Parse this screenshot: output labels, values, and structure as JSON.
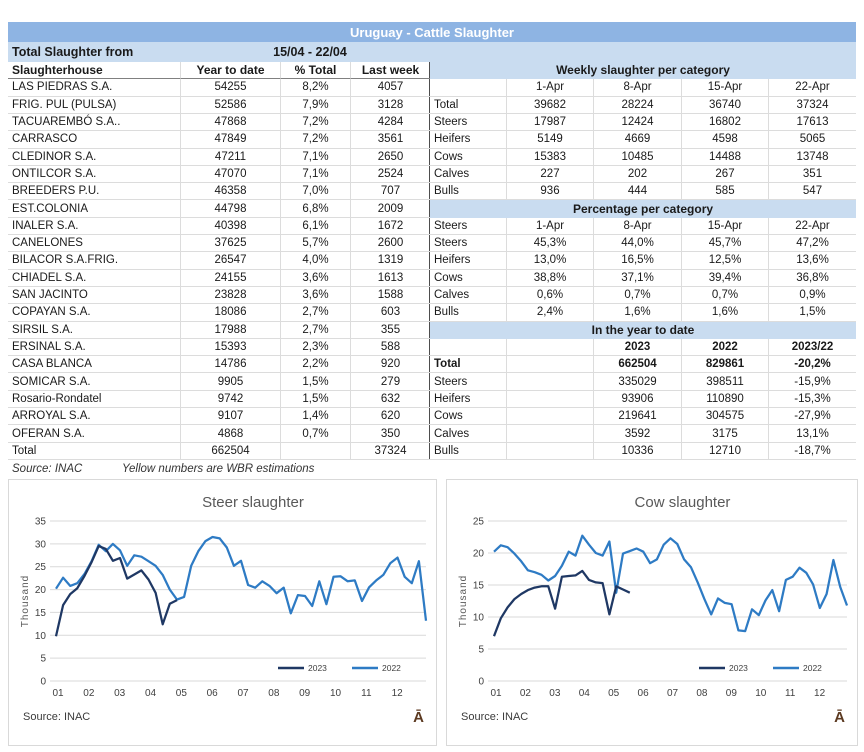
{
  "title_bar": "Uruguay - Cattle Slaughter",
  "period": {
    "label": "Total Slaughter from",
    "value": "15/04 - 22/04"
  },
  "left_table": {
    "headers": [
      "Slaughterhouse",
      "Year to date",
      "% Total",
      "Last week"
    ],
    "rows": [
      [
        "LAS PIEDRAS S.A.",
        "54255",
        "8,2%",
        "4057"
      ],
      [
        "FRIG. PUL (PULSA)",
        "52586",
        "7,9%",
        "3128"
      ],
      [
        "TACUAREMBÓ S.A..",
        "47868",
        "7,2%",
        "4284"
      ],
      [
        "CARRASCO",
        "47849",
        "7,2%",
        "3561"
      ],
      [
        "CLEDINOR S.A.",
        "47211",
        "7,1%",
        "2650"
      ],
      [
        "ONTILCOR S.A.",
        "47070",
        "7,1%",
        "2524"
      ],
      [
        "BREEDERS P.U.",
        "46358",
        "7,0%",
        "707"
      ],
      [
        "EST.COLONIA",
        "44798",
        "6,8%",
        "2009"
      ],
      [
        "INALER S.A.",
        "40398",
        "6,1%",
        "1672"
      ],
      [
        "CANELONES",
        "37625",
        "5,7%",
        "2600"
      ],
      [
        "BILACOR S.A.FRIG.",
        "26547",
        "4,0%",
        "1319"
      ],
      [
        "CHIADEL S.A.",
        "24155",
        "3,6%",
        "1613"
      ],
      [
        "SAN JACINTO",
        "23828",
        "3,6%",
        "1588"
      ],
      [
        "COPAYAN S.A.",
        "18086",
        "2,7%",
        "603"
      ],
      [
        "SIRSIL S.A.",
        "17988",
        "2,7%",
        "355"
      ],
      [
        "ERSINAL S.A.",
        "15393",
        "2,3%",
        "588"
      ],
      [
        "CASA BLANCA",
        "14786",
        "2,2%",
        "920"
      ],
      [
        "SOMICAR S.A.",
        "9905",
        "1,5%",
        "279"
      ],
      [
        "Rosario-Rondatel",
        "9742",
        "1,5%",
        "632"
      ],
      [
        "ARROYAL S.A.",
        "9107",
        "1,4%",
        "620"
      ],
      [
        "OFERAN S.A.",
        "4868",
        "0,7%",
        "350"
      ],
      [
        "Total",
        "662504",
        "",
        "37324"
      ]
    ],
    "footnote_source": "Source: INAC",
    "footnote_note": "Yellow numbers are WBR estimations"
  },
  "right_panel": {
    "rows": [
      {
        "kind": "band",
        "label": "Weekly slaughter per category"
      },
      {
        "kind": "cols",
        "label": "",
        "values": [
          "1-Apr",
          "8-Apr",
          "15-Apr",
          "22-Apr"
        ],
        "bold": false
      },
      {
        "kind": "data",
        "label": "Total",
        "values": [
          "39682",
          "28224",
          "36740",
          "37324"
        ],
        "bold": false
      },
      {
        "kind": "data",
        "label": "Steers",
        "values": [
          "17987",
          "12424",
          "16802",
          "17613"
        ],
        "bold": false
      },
      {
        "kind": "data",
        "label": "Heifers",
        "values": [
          "5149",
          "4669",
          "4598",
          "5065"
        ],
        "bold": false
      },
      {
        "kind": "data",
        "label": "Cows",
        "values": [
          "15383",
          "10485",
          "14488",
          "13748"
        ],
        "bold": false
      },
      {
        "kind": "data",
        "label": "Calves",
        "values": [
          "227",
          "202",
          "267",
          "351"
        ],
        "bold": false
      },
      {
        "kind": "data",
        "label": "Bulls",
        "values": [
          "936",
          "444",
          "585",
          "547"
        ],
        "bold": false
      },
      {
        "kind": "band",
        "label": "Percentage per category"
      },
      {
        "kind": "cols",
        "label": "Steers",
        "values": [
          "1-Apr",
          "8-Apr",
          "15-Apr",
          "22-Apr"
        ],
        "bold": false
      },
      {
        "kind": "data",
        "label": "Steers",
        "values": [
          "45,3%",
          "44,0%",
          "45,7%",
          "47,2%"
        ],
        "bold": false
      },
      {
        "kind": "data",
        "label": "Heifers",
        "values": [
          "13,0%",
          "16,5%",
          "12,5%",
          "13,6%"
        ],
        "bold": false
      },
      {
        "kind": "data",
        "label": "Cows",
        "values": [
          "38,8%",
          "37,1%",
          "39,4%",
          "36,8%"
        ],
        "bold": false
      },
      {
        "kind": "data",
        "label": "Calves",
        "values": [
          "0,6%",
          "0,7%",
          "0,7%",
          "0,9%"
        ],
        "bold": false
      },
      {
        "kind": "data",
        "label": "Bulls",
        "values": [
          "2,4%",
          "1,6%",
          "1,6%",
          "1,5%"
        ],
        "bold": false
      },
      {
        "kind": "band",
        "label": "In the year to date"
      },
      {
        "kind": "cols",
        "label": "",
        "values": [
          "",
          "2023",
          "2022",
          "2023/22"
        ],
        "bold": true
      },
      {
        "kind": "data",
        "label": "Total",
        "values": [
          "",
          "662504",
          "829861",
          "-20,2%"
        ],
        "bold": true
      },
      {
        "kind": "data",
        "label": "Steers",
        "values": [
          "",
          "335029",
          "398511",
          "-15,9%"
        ],
        "bold": false
      },
      {
        "kind": "data",
        "label": "Heifers",
        "values": [
          "",
          "93906",
          "110890",
          "-15,3%"
        ],
        "bold": false
      },
      {
        "kind": "data",
        "label": "Cows",
        "values": [
          "",
          "219641",
          "304575",
          "-27,9%"
        ],
        "bold": false
      },
      {
        "kind": "data",
        "label": "Calves",
        "values": [
          "",
          "3592",
          "3175",
          "13,1%"
        ],
        "bold": false
      },
      {
        "kind": "data",
        "label": "Bulls",
        "values": [
          "",
          "10336",
          "12710",
          "-18,7%"
        ],
        "bold": false
      }
    ]
  },
  "colors": {
    "title_bar_bg": "#8EB4E3",
    "band_bg": "#C9DCF0",
    "series_2023": "#1F3864",
    "series_2022": "#2E7BC4",
    "grid_line": "#d9d9d9",
    "watermark": "#5C3A21"
  },
  "chart_data": [
    {
      "type": "line",
      "title": "Steer slaughter",
      "ylabel": "Thousand",
      "source": "Source: INAC",
      "watermark": "Ā",
      "x_labels": [
        "01",
        "02",
        "03",
        "04",
        "05",
        "06",
        "07",
        "08",
        "09",
        "10",
        "11",
        "12"
      ],
      "ylim": [
        0,
        35
      ],
      "ytick_step": 5,
      "grid": true,
      "legend_position": "bottom-right",
      "series": [
        {
          "name": "2023",
          "color": "#1F3864",
          "values": [
            9.8,
            16.6,
            19.0,
            20.3,
            23.0,
            26.0,
            29.5,
            28.9,
            26.3,
            26.9,
            22.4,
            23.3,
            24.2,
            22.2,
            19.3,
            12.4,
            16.9,
            17.7
          ]
        },
        {
          "name": "2022",
          "color": "#2E7BC4",
          "values": [
            20.2,
            22.6,
            20.8,
            21.4,
            23.4,
            26.2,
            29.8,
            28.4,
            30.0,
            28.6,
            25.2,
            27.5,
            27.2,
            26.2,
            25.2,
            23.2,
            20.0,
            17.8,
            18.4,
            25.2,
            28.4,
            30.6,
            31.5,
            31.2,
            29.2,
            25.2,
            26.3,
            21.0,
            20.4,
            21.8,
            20.8,
            19.2,
            20.4,
            14.8,
            18.8,
            18.6,
            16.4,
            21.8,
            16.8,
            22.8,
            22.9,
            21.8,
            22.0,
            17.5,
            20.5,
            22.0,
            23.2,
            25.8,
            27.0,
            22.8,
            21.4,
            26.2,
            13.2
          ]
        }
      ]
    },
    {
      "type": "line",
      "title": "Cow slaughter",
      "ylabel": "Thousand",
      "source": "Source: INAC",
      "watermark": "Ā",
      "x_labels": [
        "01",
        "02",
        "03",
        "04",
        "05",
        "06",
        "07",
        "08",
        "09",
        "10",
        "11",
        "12"
      ],
      "ylim": [
        0,
        25
      ],
      "ytick_step": 5,
      "grid": true,
      "legend_position": "bottom-right",
      "series": [
        {
          "name": "2023",
          "color": "#1F3864",
          "values": [
            7.0,
            9.8,
            11.5,
            12.8,
            13.6,
            14.2,
            14.6,
            14.8,
            14.8,
            11.3,
            16.3,
            16.4,
            16.5,
            17.2,
            15.8,
            15.4,
            15.3,
            10.4,
            14.8,
            14.3,
            13.8
          ]
        },
        {
          "name": "2022",
          "color": "#2E7BC4",
          "values": [
            20.2,
            21.2,
            20.9,
            19.9,
            18.7,
            17.3,
            17.0,
            16.6,
            15.7,
            16.4,
            18.0,
            20.2,
            19.6,
            22.7,
            21.3,
            20.0,
            19.6,
            21.8,
            13.8,
            19.9,
            20.3,
            20.7,
            20.2,
            18.4,
            19.0,
            21.3,
            22.3,
            21.4,
            19.0,
            17.8,
            15.4,
            12.8,
            10.4,
            12.9,
            12.2,
            12.0,
            7.9,
            7.8,
            11.2,
            10.3,
            12.6,
            14.2,
            10.9,
            15.8,
            16.3,
            17.7,
            16.9,
            15.1,
            11.4,
            13.6,
            18.9,
            14.7,
            11.8
          ]
        }
      ]
    }
  ]
}
